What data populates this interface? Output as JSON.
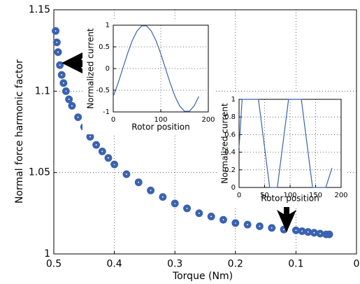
{
  "chart_data": [
    {
      "type": "scatter",
      "xlabel": "Torque (Nm)",
      "ylabel": "Normal force harmonic factor",
      "xlim": [
        0.5,
        0
      ],
      "xticks": [
        0.5,
        0.4,
        0.3,
        0.2,
        0.1,
        0
      ],
      "ylim": [
        1,
        1.15
      ],
      "yticks": [
        1,
        1.05,
        1.1,
        1.15
      ],
      "grid": true,
      "series": [
        {
          "color": "#3a62b0",
          "x": [
            0.497,
            0.495,
            0.493,
            0.49,
            0.487,
            0.484,
            0.48,
            0.475,
            0.47,
            0.46,
            0.45,
            0.44,
            0.43,
            0.42,
            0.41,
            0.4,
            0.38,
            0.36,
            0.34,
            0.32,
            0.3,
            0.28,
            0.26,
            0.24,
            0.22,
            0.2,
            0.18,
            0.16,
            0.14,
            0.12,
            0.1,
            0.09,
            0.08,
            0.07,
            0.06,
            0.05,
            0.045
          ],
          "values": [
            1.137,
            1.13,
            1.124,
            1.116,
            1.11,
            1.105,
            1.1,
            1.095,
            1.091,
            1.084,
            1.078,
            1.072,
            1.067,
            1.063,
            1.059,
            1.055,
            1.049,
            1.044,
            1.039,
            1.035,
            1.031,
            1.028,
            1.025,
            1.023,
            1.021,
            1.019,
            1.018,
            1.017,
            1.016,
            1.015,
            1.0145,
            1.014,
            1.0135,
            1.013,
            1.0125,
            1.012,
            1.012
          ]
        }
      ]
    },
    {
      "type": "line",
      "xlabel": "Rotor position",
      "ylabel": "Normalized current",
      "xlim": [
        0,
        200
      ],
      "xticks": [
        0,
        100,
        200
      ],
      "ylim": [
        -1,
        1
      ],
      "yticks": [
        -1,
        -0.5,
        0,
        0.5,
        1
      ],
      "grid": true,
      "series": [
        {
          "color": "#3a62b0",
          "x": [
            0,
            10,
            20,
            30,
            40,
            50,
            60,
            70,
            80,
            90,
            100,
            110,
            120,
            130,
            140,
            150,
            160,
            170,
            180
          ],
          "values": [
            -0.643,
            -0.342,
            0,
            0.342,
            0.643,
            0.866,
            0.985,
            0.985,
            0.866,
            0.643,
            0.342,
            0,
            -0.342,
            -0.643,
            -0.866,
            -0.985,
            -0.985,
            -0.866,
            -0.643
          ]
        }
      ]
    },
    {
      "type": "line",
      "xlabel": "Rotor position",
      "ylabel": "Normalized current",
      "xlim": [
        0,
        200
      ],
      "xticks": [
        0,
        50,
        100,
        150,
        200
      ],
      "ylim": [
        0,
        1
      ],
      "yticks": [
        0,
        0.2,
        0.4,
        0.6,
        0.8,
        1
      ],
      "grid": true,
      "series": [
        {
          "color": "#3a62b0",
          "x": [
            0,
            6,
            38,
            60,
            75,
            97,
            122,
            144,
            170,
            182
          ],
          "values": [
            0.45,
            1,
            1,
            0,
            0,
            1,
            1,
            0,
            0,
            0.22
          ]
        }
      ]
    }
  ]
}
